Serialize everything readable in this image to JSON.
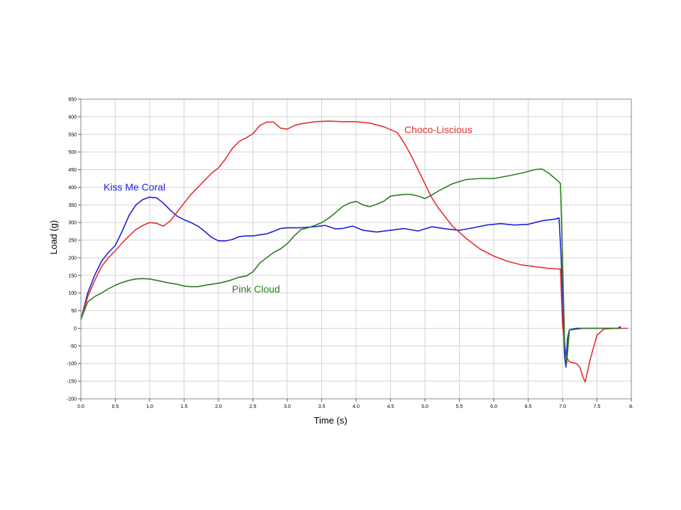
{
  "chart_data": {
    "type": "line",
    "xlabel": "Time (s)",
    "ylabel": "Load (g)",
    "xlim": [
      0,
      8
    ],
    "ylim": [
      -200,
      650
    ],
    "x_ticks": [
      0.0,
      0.5,
      1.0,
      1.5,
      2.0,
      2.5,
      3.0,
      3.5,
      4.0,
      4.5,
      5.0,
      5.5,
      6.0,
      6.5,
      7.0,
      7.5,
      8.0
    ],
    "x_tick_labels": [
      "0.0",
      "0.5",
      "1.0",
      "1.5",
      "2.0",
      "2.5",
      "3.0",
      "3.5",
      "4.0",
      "4.5",
      "5.0",
      "5.5",
      "6.0",
      "6.5",
      "7.0",
      "7.5",
      "8."
    ],
    "y_ticks": [
      -200,
      -150,
      -100,
      -50,
      0,
      50,
      100,
      150,
      200,
      250,
      300,
      350,
      400,
      450,
      500,
      550,
      600,
      650
    ],
    "y_tick_labels": [
      "-200",
      "-150",
      "-100",
      "-50",
      "0",
      "50",
      "100",
      "150",
      "200",
      "250",
      "300",
      "350",
      "400",
      "450",
      "500",
      "550",
      "600",
      "650"
    ],
    "grid": true,
    "series": [
      {
        "name": "Kiss Me Coral",
        "color": "#1f1fd6",
        "x": [
          0.0,
          0.1,
          0.2,
          0.3,
          0.4,
          0.5,
          0.6,
          0.7,
          0.8,
          0.9,
          1.0,
          1.1,
          1.2,
          1.3,
          1.4,
          1.5,
          1.6,
          1.7,
          1.8,
          1.9,
          2.0,
          2.1,
          2.2,
          2.3,
          2.4,
          2.5,
          2.6,
          2.7,
          2.8,
          2.9,
          3.0,
          3.2,
          3.4,
          3.55,
          3.7,
          3.8,
          3.95,
          4.1,
          4.3,
          4.5,
          4.7,
          4.9,
          5.1,
          5.3,
          5.5,
          5.7,
          5.9,
          6.1,
          6.3,
          6.5,
          6.7,
          6.9,
          6.95,
          6.98,
          7.0,
          7.03,
          7.05,
          7.07,
          7.1,
          7.2,
          7.4,
          7.6,
          7.8,
          7.85
        ],
        "y": [
          25,
          100,
          150,
          190,
          215,
          235,
          275,
          320,
          350,
          365,
          372,
          370,
          355,
          335,
          318,
          308,
          300,
          290,
          275,
          258,
          248,
          248,
          252,
          260,
          262,
          262,
          265,
          268,
          275,
          283,
          285,
          285,
          288,
          292,
          282,
          283,
          290,
          278,
          273,
          278,
          283,
          276,
          288,
          282,
          278,
          285,
          293,
          297,
          293,
          295,
          305,
          310,
          313,
          200,
          60,
          -80,
          -110,
          -30,
          -4,
          0,
          0,
          0,
          0,
          5
        ]
      },
      {
        "name": "Choco-Liscious",
        "color": "#e33030",
        "x": [
          0.0,
          0.1,
          0.2,
          0.3,
          0.4,
          0.5,
          0.6,
          0.7,
          0.8,
          0.9,
          1.0,
          1.1,
          1.2,
          1.3,
          1.4,
          1.5,
          1.6,
          1.7,
          1.8,
          1.9,
          2.0,
          2.1,
          2.2,
          2.3,
          2.4,
          2.5,
          2.6,
          2.7,
          2.8,
          2.9,
          3.0,
          3.1,
          3.2,
          3.4,
          3.6,
          3.8,
          4.0,
          4.2,
          4.4,
          4.6,
          4.7,
          4.8,
          4.9,
          5.0,
          5.1,
          5.2,
          5.4,
          5.6,
          5.8,
          6.0,
          6.2,
          6.4,
          6.6,
          6.8,
          6.97,
          6.98,
          7.0,
          7.05,
          7.1,
          7.2,
          7.25,
          7.3,
          7.33,
          7.4,
          7.5,
          7.6,
          7.8,
          7.95
        ],
        "y": [
          25,
          90,
          135,
          175,
          200,
          220,
          242,
          262,
          280,
          292,
          300,
          298,
          290,
          305,
          330,
          355,
          380,
          400,
          420,
          440,
          455,
          480,
          510,
          530,
          540,
          552,
          575,
          585,
          585,
          568,
          565,
          575,
          580,
          586,
          588,
          586,
          586,
          582,
          572,
          555,
          525,
          490,
          450,
          410,
          370,
          340,
          290,
          255,
          225,
          205,
          190,
          180,
          175,
          170,
          168,
          110,
          10,
          -80,
          -95,
          -100,
          -110,
          -140,
          -152,
          -90,
          -20,
          -2,
          0,
          0
        ]
      },
      {
        "name": "Pink Cloud",
        "color": "#2a7d1e",
        "x": [
          0.0,
          0.1,
          0.2,
          0.3,
          0.4,
          0.5,
          0.6,
          0.7,
          0.8,
          0.9,
          1.0,
          1.1,
          1.2,
          1.3,
          1.4,
          1.5,
          1.6,
          1.7,
          1.8,
          1.9,
          2.0,
          2.1,
          2.2,
          2.3,
          2.4,
          2.5,
          2.6,
          2.7,
          2.8,
          2.9,
          3.0,
          3.1,
          3.2,
          3.3,
          3.4,
          3.5,
          3.6,
          3.7,
          3.8,
          3.9,
          4.0,
          4.1,
          4.2,
          4.3,
          4.4,
          4.5,
          4.6,
          4.7,
          4.8,
          4.9,
          5.0,
          5.1,
          5.2,
          5.4,
          5.6,
          5.8,
          6.0,
          6.2,
          6.4,
          6.6,
          6.7,
          6.8,
          6.95,
          6.97,
          7.0,
          7.03,
          7.06,
          7.1,
          7.3,
          7.6,
          7.85
        ],
        "y": [
          25,
          75,
          90,
          100,
          112,
          122,
          130,
          136,
          140,
          141,
          140,
          136,
          132,
          128,
          125,
          120,
          118,
          118,
          122,
          125,
          128,
          132,
          138,
          145,
          148,
          160,
          185,
          200,
          215,
          225,
          240,
          262,
          280,
          285,
          292,
          300,
          312,
          328,
          345,
          355,
          360,
          350,
          345,
          352,
          360,
          375,
          378,
          380,
          380,
          375,
          368,
          378,
          390,
          410,
          422,
          425,
          425,
          432,
          440,
          450,
          452,
          440,
          415,
          410,
          200,
          -40,
          -100,
          -5,
          0,
          0,
          0
        ]
      }
    ],
    "annotations": [
      {
        "text": "Kiss Me Coral",
        "color": "#1f1fd6"
      },
      {
        "text": "Choco-Liscious",
        "color": "#e33030"
      },
      {
        "text": "Pink Cloud",
        "color": "#2a7d1e"
      }
    ]
  }
}
